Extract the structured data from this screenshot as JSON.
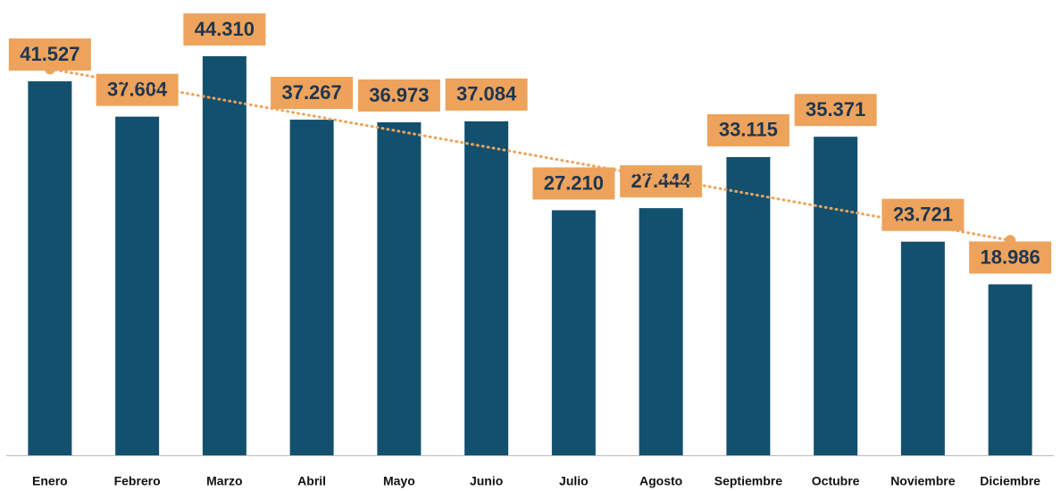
{
  "chart_data": {
    "type": "bar",
    "categories": [
      "Enero",
      "Febrero",
      "Marzo",
      "Abril",
      "Mayo",
      "Junio",
      "Julio",
      "Agosto",
      "Septiembre",
      "Octubre",
      "Noviembre",
      "Diciembre"
    ],
    "values": [
      41527,
      37604,
      44310,
      37267,
      36973,
      37084,
      27210,
      27444,
      33115,
      35371,
      23721,
      18986
    ],
    "value_labels": [
      "41.527",
      "37.604",
      "44.310",
      "37.267",
      "36.973",
      "37.084",
      "27.210",
      "27.444",
      "33.115",
      "35.371",
      "23.721",
      "18.986"
    ],
    "color": "#13506e",
    "label_box_color": "#eda35c",
    "trendline": "linear",
    "trendline_color": "#eda35c"
  }
}
